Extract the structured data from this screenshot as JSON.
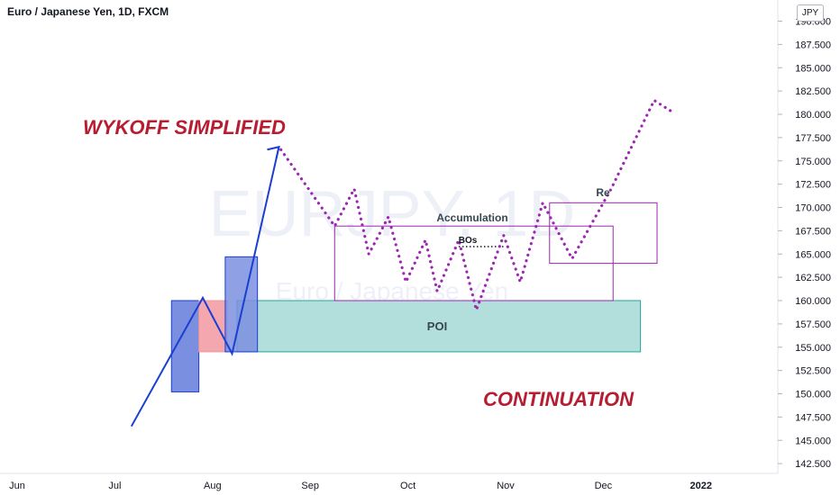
{
  "header": {
    "symbol_title": "Euro / Japanese Yen, 1D, FXCM",
    "currency": "JPY"
  },
  "watermark": {
    "line1": "EURJPY, 1D",
    "line2": "Euro / Japanese Yen"
  },
  "chart_data": {
    "type": "line",
    "title": "Euro / Japanese Yen, 1D, FXCM",
    "ylim": [
      141.5,
      190.5
    ],
    "y_ticks": [
      "142.500",
      "145.000",
      "147.500",
      "150.000",
      "152.500",
      "155.000",
      "157.500",
      "160.000",
      "162.500",
      "165.000",
      "167.500",
      "170.000",
      "172.500",
      "175.000",
      "177.500",
      "180.000",
      "182.500",
      "185.000",
      "187.500",
      "190.000"
    ],
    "x_ticks": [
      "Jun",
      "Jul",
      "Aug",
      "Sep",
      "Oct",
      "Nov",
      "Dec",
      "2022"
    ],
    "annotations": {
      "title_text": "WYKOFF SIMPLIFIED",
      "continuation": "CONTINUATION",
      "poi": "POI",
      "accumulation": "Accumulation",
      "bos": "BOs",
      "re": "Re"
    },
    "zones": [
      {
        "name": "POI",
        "ymin": 154.5,
        "ymax": 160.0,
        "color": "#b2dfdb"
      },
      {
        "name": "Accumulation",
        "ymin": 160.0,
        "ymax": 168.0,
        "color": "#9c27b0"
      },
      {
        "name": "Re",
        "ymin": 164.0,
        "ymax": 170.5,
        "color": "#9c27b0"
      }
    ],
    "series": [
      {
        "name": "",
        "style": "solid",
        "color": "#1a3fd1",
        "points": [
          [
            1.17,
            146.5
          ],
          [
            1.9,
            160.3
          ],
          [
            2.2,
            154.3
          ],
          [
            2.68,
            176.5
          ]
        ]
      },
      {
        "name": "",
        "style": "dotted",
        "color": "#9c27b0",
        "points": [
          [
            2.7,
            176.2
          ],
          [
            3.25,
            168.0
          ],
          [
            3.45,
            172.0
          ],
          [
            3.6,
            165.0
          ],
          [
            3.8,
            169.0
          ],
          [
            3.98,
            162.0
          ],
          [
            4.18,
            166.5
          ],
          [
            4.3,
            161.0
          ],
          [
            4.52,
            166.5
          ],
          [
            4.7,
            159.0
          ],
          [
            4.98,
            167.0
          ],
          [
            5.15,
            162.0
          ],
          [
            5.38,
            170.5
          ],
          [
            5.68,
            164.5
          ],
          [
            6.08,
            172.0
          ],
          [
            6.52,
            181.5
          ],
          [
            6.7,
            180.3
          ]
        ]
      }
    ],
    "bos_level": 165.8,
    "colors": {
      "blue_box": "#7b8fe0",
      "pink_box": "#f4a7ae",
      "annotation_red": "#b71c30",
      "purple": "#9c27b0",
      "axis_text": "#131722"
    }
  }
}
